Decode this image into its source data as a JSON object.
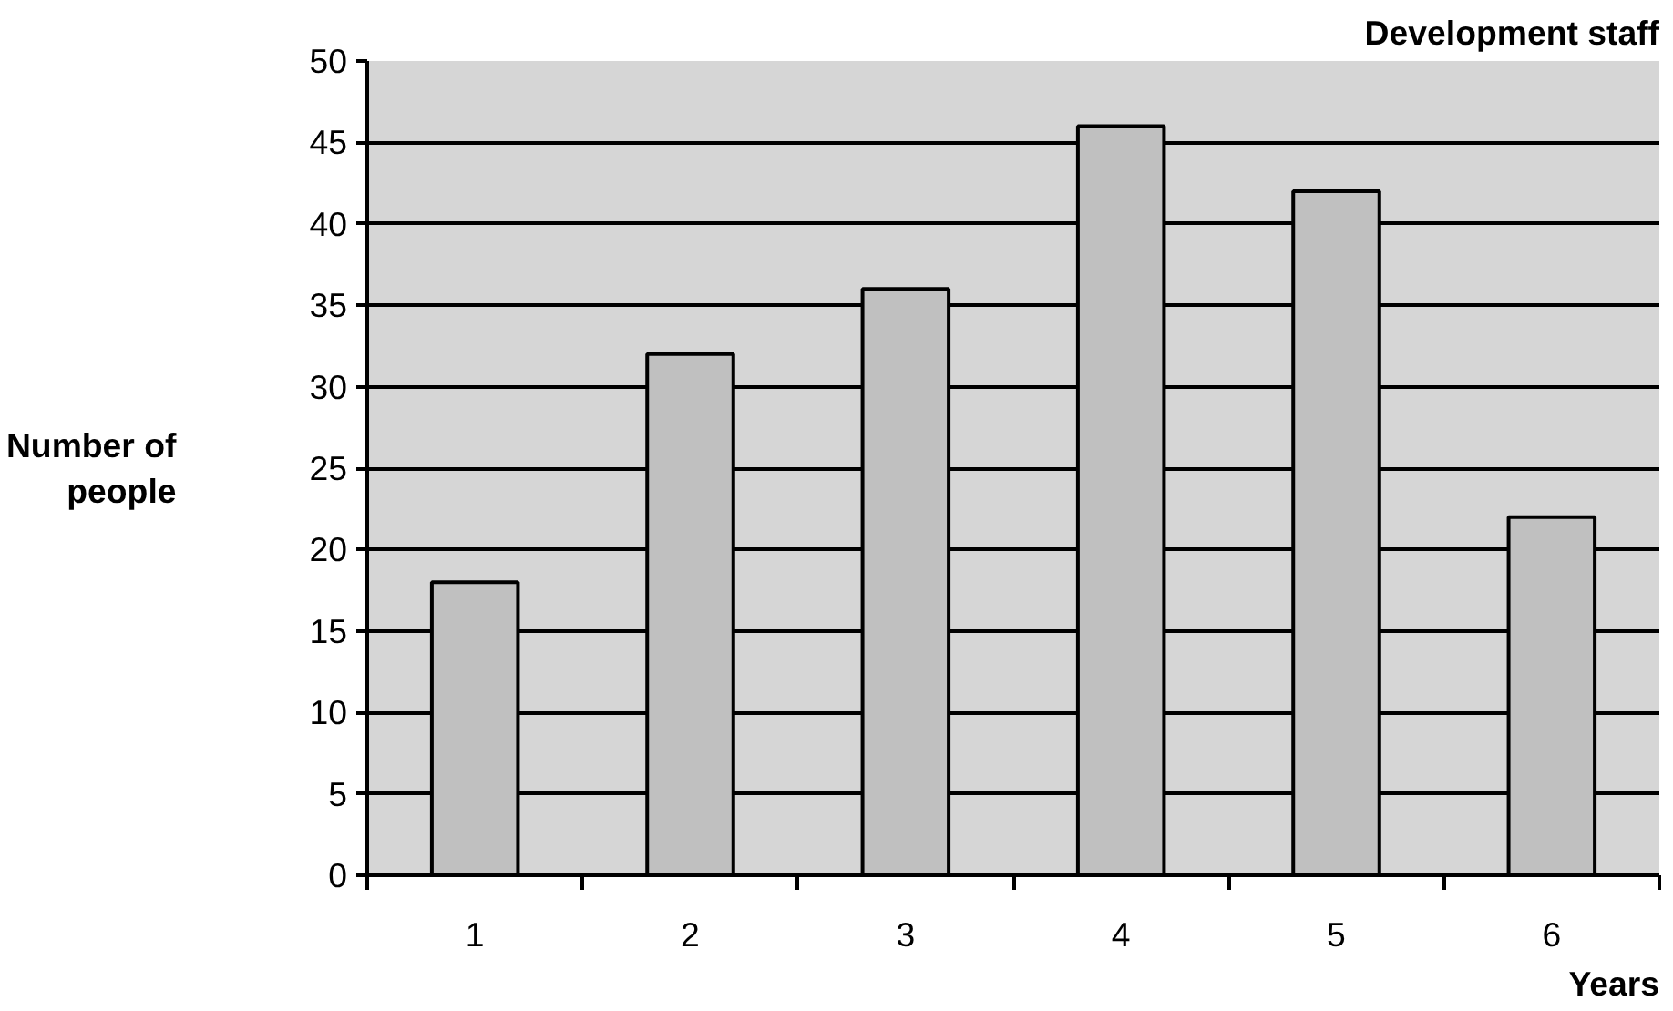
{
  "chart_data": {
    "type": "bar",
    "title": "Development staff",
    "xlabel": "Years",
    "ylabel": "Number of\npeople",
    "categories": [
      "1",
      "2",
      "3",
      "4",
      "5",
      "6"
    ],
    "values": [
      18,
      32,
      36,
      46,
      42,
      22
    ],
    "color": "#c0c0c0",
    "ylim": [
      0,
      50
    ],
    "yticks": [
      0,
      5,
      10,
      15,
      20,
      25,
      30,
      35,
      40,
      45,
      50
    ],
    "grid": "y"
  }
}
